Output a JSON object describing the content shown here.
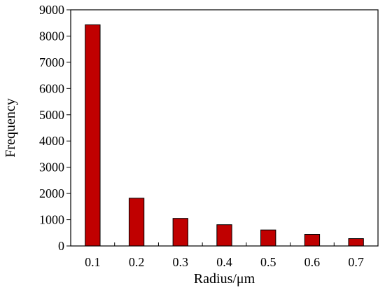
{
  "chart_data": {
    "type": "bar",
    "title": "",
    "xlabel": "Radius/μm",
    "ylabel": "Frequency",
    "categories": [
      "0.1",
      "0.2",
      "0.3",
      "0.4",
      "0.5",
      "0.6",
      "0.7"
    ],
    "values": [
      8430,
      1820,
      1050,
      810,
      610,
      440,
      280
    ],
    "ylim": [
      0,
      9000
    ],
    "yticks": [
      "0",
      "1000",
      "2000",
      "3000",
      "4000",
      "5000",
      "6000",
      "7000",
      "8000",
      "9000"
    ],
    "grid": false,
    "legend": "none",
    "bar_color": "#c00000",
    "bar_edge_color": "#000000"
  }
}
